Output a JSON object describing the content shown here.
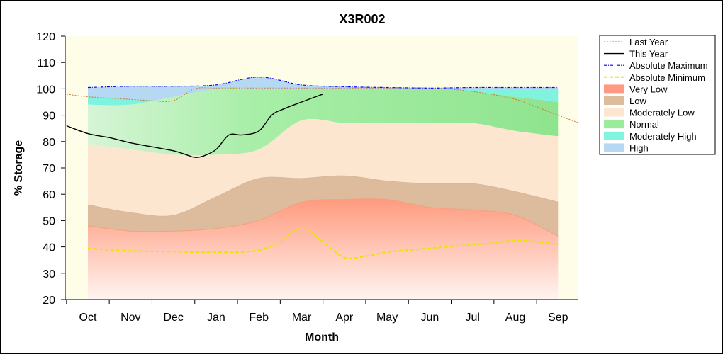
{
  "chart_data": {
    "type": "area",
    "title": "X3R002",
    "xlabel": "Month",
    "ylabel": "% Storage",
    "ylim": [
      20,
      120
    ],
    "yticks": [
      20,
      30,
      40,
      50,
      60,
      70,
      80,
      90,
      100,
      110,
      120
    ],
    "months": [
      "Oct",
      "Nov",
      "Dec",
      "Jan",
      "Feb",
      "Mar",
      "Apr",
      "May",
      "Jun",
      "Jul",
      "Aug",
      "Sep"
    ],
    "grid": false,
    "legend_position": "right",
    "bands": {
      "x": [
        0,
        1,
        2,
        3,
        4,
        5,
        6,
        7,
        8,
        9,
        10,
        11
      ],
      "very_low_top": [
        48,
        46,
        46,
        47,
        50,
        57,
        58,
        58,
        55,
        54,
        52,
        44
      ],
      "low_top": [
        56,
        53,
        52,
        59,
        66,
        66,
        67,
        65,
        64,
        64,
        61,
        57
      ],
      "moderately_low_top": [
        79,
        77,
        75,
        75,
        77,
        88,
        87,
        87,
        87,
        87,
        84,
        82
      ],
      "normal_top": [
        94,
        94,
        97,
        100,
        100,
        100,
        100,
        100,
        100,
        99,
        97,
        95
      ],
      "moderately_high_top": [
        97,
        96,
        96,
        100,
        100,
        100,
        100,
        100,
        100,
        100,
        100,
        100
      ],
      "high_top": [
        100.5,
        101,
        101,
        101.5,
        104.5,
        101.5,
        100.8,
        100.5,
        100.3,
        100.5,
        100.5,
        100.5
      ]
    },
    "series": [
      {
        "name": "Last Year",
        "color": "#c87830",
        "style": "dotted",
        "x": [
          -0.5,
          0,
          1,
          1.5,
          2,
          2.5,
          3,
          4,
          5,
          6,
          7,
          8,
          9,
          10,
          11,
          11.5
        ],
        "values": [
          98,
          97,
          96,
          95.5,
          95.5,
          100,
          100.3,
          100.3,
          100.3,
          100.3,
          100.3,
          100.3,
          99,
          96,
          90,
          87
        ]
      },
      {
        "name": "This Year",
        "color": "#000000",
        "style": "solid",
        "x": [
          -0.5,
          0,
          0.5,
          1,
          1.5,
          2,
          2.3,
          2.5,
          2.7,
          3,
          3.3,
          3.6,
          4,
          4.3,
          4.6,
          5,
          5.5
        ],
        "values": [
          86,
          83,
          81.5,
          79.5,
          78,
          76.5,
          75,
          74,
          74.5,
          77,
          82.5,
          82.5,
          84,
          90,
          92.5,
          95,
          98
        ]
      },
      {
        "name": "Absolute Maximum",
        "color": "#0000ff",
        "style": "dashdot",
        "x": [
          0,
          1,
          2,
          3,
          4,
          5,
          6,
          7,
          8,
          9,
          10,
          11
        ],
        "values": [
          100.5,
          101,
          101,
          101.5,
          104.5,
          101.5,
          100.8,
          100.5,
          100.3,
          100.5,
          100.5,
          100.5
        ]
      },
      {
        "name": "Absolute Minimum",
        "color": "#e6e600",
        "style": "dashed",
        "x": [
          0,
          0.5,
          1,
          1.5,
          2,
          2.5,
          3,
          3.5,
          4,
          4.5,
          5,
          5.5,
          6,
          6.5,
          7,
          7.5,
          8,
          8.5,
          9,
          9.5,
          10,
          10.5,
          11
        ],
        "values": [
          39.5,
          38.8,
          38.5,
          38.3,
          38.2,
          38,
          38,
          38,
          38.8,
          42,
          47.5,
          42,
          36,
          36.5,
          38,
          38.8,
          39.5,
          40.2,
          40.8,
          41.5,
          42.5,
          42,
          41
        ]
      }
    ],
    "legend": [
      {
        "label": "Last Year",
        "kind": "line",
        "color": "#c87830",
        "style": "dotted"
      },
      {
        "label": "This Year",
        "kind": "line",
        "color": "#000000",
        "style": "solid"
      },
      {
        "label": "Absolute Maximum",
        "kind": "line",
        "color": "#0000ff",
        "style": "dashdot"
      },
      {
        "label": "Absolute Minimum",
        "kind": "line",
        "color": "#e6e600",
        "style": "dashed"
      },
      {
        "label": "Very Low",
        "kind": "area",
        "color": "#ff9a80"
      },
      {
        "label": "Low",
        "kind": "area",
        "color": "#dcbc9c"
      },
      {
        "label": "Moderately Low",
        "kind": "area",
        "color": "#fde6cf"
      },
      {
        "label": "Normal",
        "kind": "area",
        "color": "#9aeb9a"
      },
      {
        "label": "Moderately High",
        "kind": "area",
        "color": "#7ff5df"
      },
      {
        "label": "High",
        "kind": "area",
        "color": "#b6d8f2"
      }
    ]
  }
}
